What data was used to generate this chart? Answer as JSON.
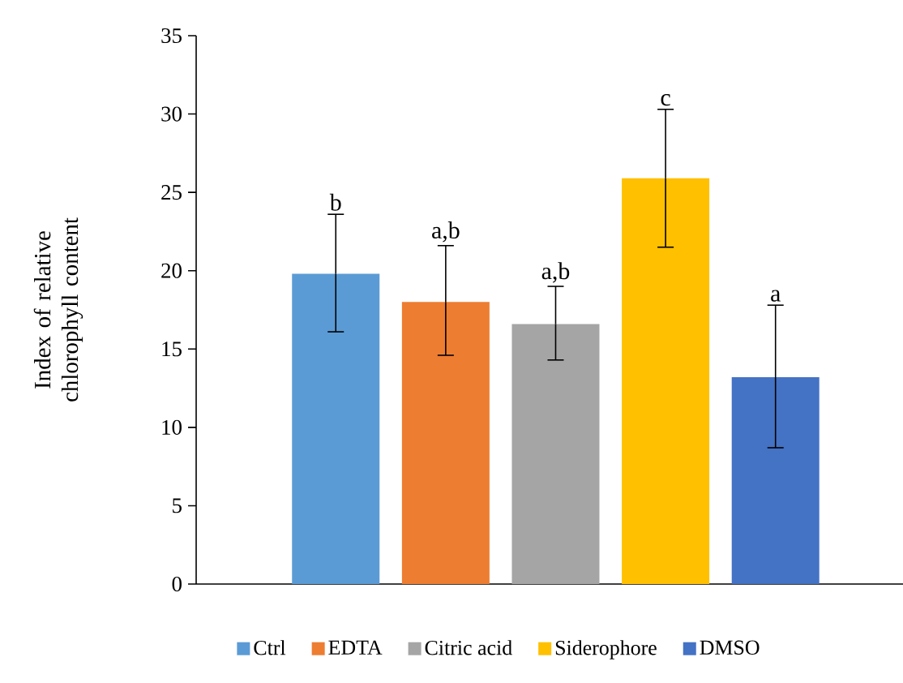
{
  "chart_data": {
    "type": "bar",
    "ylabel": "Index of relative chlorophyll content",
    "categories": [
      null,
      null,
      null,
      null,
      null
    ],
    "series": [
      {
        "name": "Ctrl",
        "color": "#5b9bd5",
        "values": [
          19.8,
          null,
          null,
          null,
          null
        ],
        "errors": [
          [
            16.1,
            23.6
          ],
          null,
          null,
          null,
          null
        ]
      },
      {
        "name": "EDTA",
        "color": "#ed7d31",
        "values": [
          null,
          18.0,
          null,
          null,
          null
        ],
        "errors": [
          null,
          [
            14.6,
            21.6
          ],
          null,
          null,
          null
        ]
      },
      {
        "name": "Citric acid",
        "color": "#a5a5a5",
        "values": [
          null,
          null,
          16.6,
          null,
          null
        ],
        "errors": [
          null,
          null,
          [
            14.3,
            19.0
          ],
          null,
          null
        ]
      },
      {
        "name": "Siderophore",
        "color": "#ffc000",
        "values": [
          null,
          null,
          null,
          25.9,
          null
        ],
        "errors": [
          null,
          null,
          null,
          [
            21.5,
            30.3
          ],
          null
        ]
      },
      {
        "name": "DMSO",
        "color": "#4472c4",
        "values": [
          null,
          null,
          null,
          null,
          13.2
        ],
        "errors": [
          null,
          null,
          null,
          null,
          [
            8.7,
            17.8
          ]
        ]
      }
    ],
    "annotations": [
      "b",
      "a,b",
      "a,b",
      "c",
      "a"
    ],
    "ylim": [
      0,
      35
    ],
    "yticks": [
      0,
      5,
      10,
      15,
      20,
      25,
      30,
      35
    ],
    "grid": false,
    "legend": "bottom"
  }
}
